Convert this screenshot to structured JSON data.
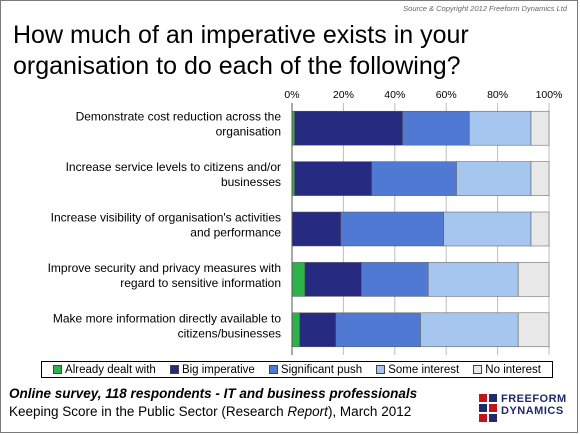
{
  "copyright": "Source & Copyright 2012 Freeform Dynamics Ltd",
  "title": "How much of an imperative exists in your organisation to do each of the following?",
  "chart_data": {
    "type": "bar",
    "orientation": "horizontal",
    "stacked": true,
    "percent": true,
    "xlim": [
      0,
      100
    ],
    "x_ticks": [
      "0%",
      "20%",
      "40%",
      "60%",
      "80%",
      "100%"
    ],
    "categories": [
      "Demonstrate cost reduction across the organisation",
      "Increase service levels to citizens and/or businesses",
      "Increase visibility of organisation's activities and performance",
      "Improve security and privacy measures with regard to sensitive information",
      "Make more information directly available to citizens/businesses"
    ],
    "category_lines": [
      [
        "Demonstrate cost reduction across the",
        "organisation"
      ],
      [
        "Increase service levels to citizens and/or",
        "businesses"
      ],
      [
        "Increase visibility of organisation's activities",
        "and performance"
      ],
      [
        "Improve security and privacy measures with",
        "regard to sensitive information"
      ],
      [
        "Make more information directly available to",
        "citizens/businesses"
      ]
    ],
    "series": [
      {
        "name": "Already dealt with",
        "color": "#2db34a",
        "values": [
          1,
          1,
          0,
          5,
          3
        ]
      },
      {
        "name": "Big imperative",
        "color": "#262a80",
        "values": [
          42,
          30,
          19,
          22,
          14
        ]
      },
      {
        "name": "Significant push",
        "color": "#4f79d2",
        "values": [
          26,
          33,
          40,
          26,
          33
        ]
      },
      {
        "name": "Some interest",
        "color": "#a6c6ef",
        "values": [
          24,
          29,
          34,
          35,
          38
        ]
      },
      {
        "name": "No interest",
        "color": "#e8e8e8",
        "values": [
          7,
          7,
          7,
          12,
          12
        ]
      }
    ],
    "legend_position": "bottom",
    "grid": true
  },
  "footer": {
    "line1": "Online survey, 118 respondents - IT and business professionals",
    "line2_main": "Keeping Score in the Public Sector (Research ",
    "line2_italic": "Report",
    "line2_end": "), March 2012"
  },
  "logo": {
    "line1": "FREEFORM",
    "line2": "DYNAMICS"
  }
}
